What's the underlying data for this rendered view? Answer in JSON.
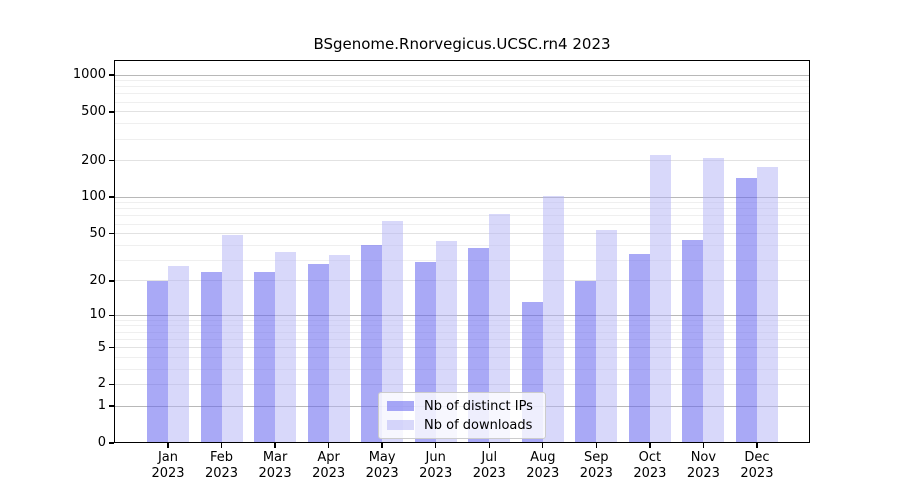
{
  "title": "BSgenome.Rnorvegicus.UCSC.rn4 2023",
  "chart_data": {
    "type": "bar",
    "title": "BSgenome.Rnorvegicus.UCSC.rn4 2023",
    "scale": "log1p",
    "grid": true,
    "categories": [
      "Jan 2023",
      "Feb 2023",
      "Mar 2023",
      "Apr 2023",
      "May 2023",
      "Jun 2023",
      "Jul 2023",
      "Aug 2023",
      "Sep 2023",
      "Oct 2023",
      "Nov 2023",
      "Dec 2023"
    ],
    "months": [
      "Jan",
      "Feb",
      "Mar",
      "Apr",
      "May",
      "Jun",
      "Jul",
      "Aug",
      "Sep",
      "Oct",
      "Nov",
      "Dec"
    ],
    "year": "2023",
    "series": [
      {
        "name": "Nb of distinct IPs",
        "color": "rgba(99,99,239,0.55)",
        "values": [
          20,
          24,
          24,
          28,
          40,
          29,
          38,
          13,
          20,
          34,
          44,
          143
        ]
      },
      {
        "name": "Nb of downloads",
        "color": "rgba(177,177,245,0.5)",
        "values": [
          27,
          49,
          35,
          33,
          64,
          43,
          72,
          102,
          54,
          220,
          208,
          177
        ]
      }
    ],
    "yticks": [
      0,
      1,
      2,
      5,
      10,
      20,
      50,
      100,
      200,
      500,
      1000
    ],
    "ylim": [
      0,
      1000
    ],
    "xlabel": "",
    "ylabel": "",
    "legend_position": "lower center",
    "colors": {
      "axis": "#000000",
      "grid_major": "#b8b8b8",
      "grid_mid": "#e2e2e2",
      "grid_minor": "#efefef",
      "legend_border": "#cccccc",
      "background": "#ffffff"
    }
  }
}
